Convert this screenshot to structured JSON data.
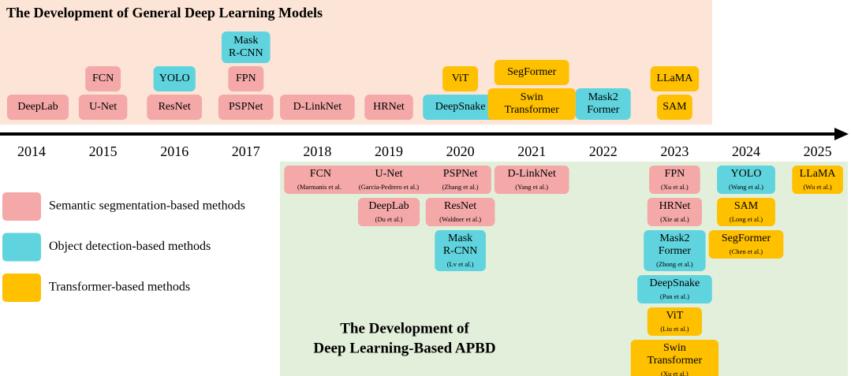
{
  "general_models": {
    "title": "The Development of General Deep Learning Models",
    "columns": [
      [
        {
          "label": [
            "DeepLab"
          ],
          "color": "#f4a8a8"
        }
      ],
      [
        {
          "label": [
            "U-Net"
          ],
          "color": "#f4a8a8"
        },
        {
          "label": [
            "FCN"
          ],
          "color": "#f4a8a8"
        }
      ],
      [
        {
          "label": [
            "ResNet"
          ],
          "color": "#f4a8a8"
        },
        {
          "label": [
            "YOLO"
          ],
          "color": "#5fd4de"
        }
      ],
      [
        {
          "label": [
            "PSPNet"
          ],
          "color": "#f4a8a8"
        },
        {
          "label": [
            "FPN"
          ],
          "color": "#f4a8a8"
        },
        {
          "label": [
            "Mask",
            "R-CNN"
          ],
          "color": "#5fd4de"
        }
      ],
      [
        {
          "label": [
            "D-LinkNet"
          ],
          "color": "#f4a8a8"
        }
      ],
      [
        {
          "label": [
            "HRNet"
          ],
          "color": "#f4a8a8"
        }
      ],
      [
        {
          "label": [
            "DeepSnake"
          ],
          "color": "#5fd4de"
        },
        {
          "label": [
            "ViT"
          ],
          "color": "#ffc000"
        }
      ],
      [
        {
          "label": [
            "Swin",
            "Transformer"
          ],
          "color": "#ffc000"
        },
        {
          "label": [
            "SegFormer"
          ],
          "color": "#ffc000"
        }
      ],
      [
        {
          "label": [
            "Mask2",
            "Former"
          ],
          "color": "#5fd4de"
        }
      ],
      [
        {
          "label": [
            "SAM"
          ],
          "color": "#ffc000"
        },
        {
          "label": [
            "LLaMA"
          ],
          "color": "#ffc000"
        }
      ],
      [],
      []
    ]
  },
  "timeline": {
    "years": [
      2014,
      2015,
      2016,
      2017,
      2018,
      2019,
      2020,
      2021,
      2022,
      2023,
      2024,
      2025
    ]
  },
  "legend": [
    {
      "label": "Semantic segmentation-based methods",
      "color": "#f4a8a8"
    },
    {
      "label": "Object detection-based methods",
      "color": "#5fd4de"
    },
    {
      "label": "Transformer-based methods",
      "color": "#ffc000"
    }
  ],
  "apbd": {
    "title": [
      "The Development of",
      "Deep Learning-Based APBD"
    ],
    "columns": [
      [],
      [],
      [],
      [],
      [
        {
          "label": [
            "FCN"
          ],
          "cite": "(Marmanis et al.)",
          "color": "#f4a8a8"
        }
      ],
      [
        {
          "label": [
            "U-Net"
          ],
          "cite": "(Garcia-Pedrero et al.)",
          "color": "#f4a8a8"
        },
        {
          "label": [
            "DeepLab"
          ],
          "cite": "(Du et al.)",
          "color": "#f4a8a8"
        }
      ],
      [
        {
          "label": [
            "PSPNet"
          ],
          "cite": "(Zhang et al.)",
          "color": "#f4a8a8"
        },
        {
          "label": [
            "ResNet"
          ],
          "cite": "(Waldner et al.)",
          "color": "#f4a8a8"
        },
        {
          "label": [
            "Mask",
            "R-CNN"
          ],
          "cite": "(Lv et al.)",
          "color": "#5fd4de"
        }
      ],
      [
        {
          "label": [
            "D-LinkNet"
          ],
          "cite": "(Yang et al.)",
          "color": "#f4a8a8"
        }
      ],
      [],
      [
        {
          "label": [
            "FPN"
          ],
          "cite": "(Xu et al.)",
          "color": "#f4a8a8"
        },
        {
          "label": [
            "HRNet"
          ],
          "cite": "(Xie at al.)",
          "color": "#f4a8a8"
        },
        {
          "label": [
            "Mask2",
            "Former"
          ],
          "cite": "(Zhong et al.)",
          "color": "#5fd4de"
        },
        {
          "label": [
            "DeepSnake"
          ],
          "cite": "(Pan et al.)",
          "color": "#5fd4de"
        },
        {
          "label": [
            "ViT"
          ],
          "cite": "(Liu et al.)",
          "color": "#ffc000"
        },
        {
          "label": [
            "Swin",
            "Transformer"
          ],
          "cite": "(Xu et al.)",
          "color": "#ffc000"
        }
      ],
      [
        {
          "label": [
            "YOLO"
          ],
          "cite": "(Wang et al.)",
          "color": "#5fd4de"
        },
        {
          "label": [
            "SAM"
          ],
          "cite": "(Long et al.)",
          "color": "#ffc000"
        },
        {
          "label": [
            "SegFormer"
          ],
          "cite": "(Chen et al.)",
          "color": "#ffc000"
        }
      ],
      [
        {
          "label": [
            "LLaMA"
          ],
          "cite": "(Wu et al.)",
          "color": "#ffc000"
        }
      ]
    ]
  }
}
